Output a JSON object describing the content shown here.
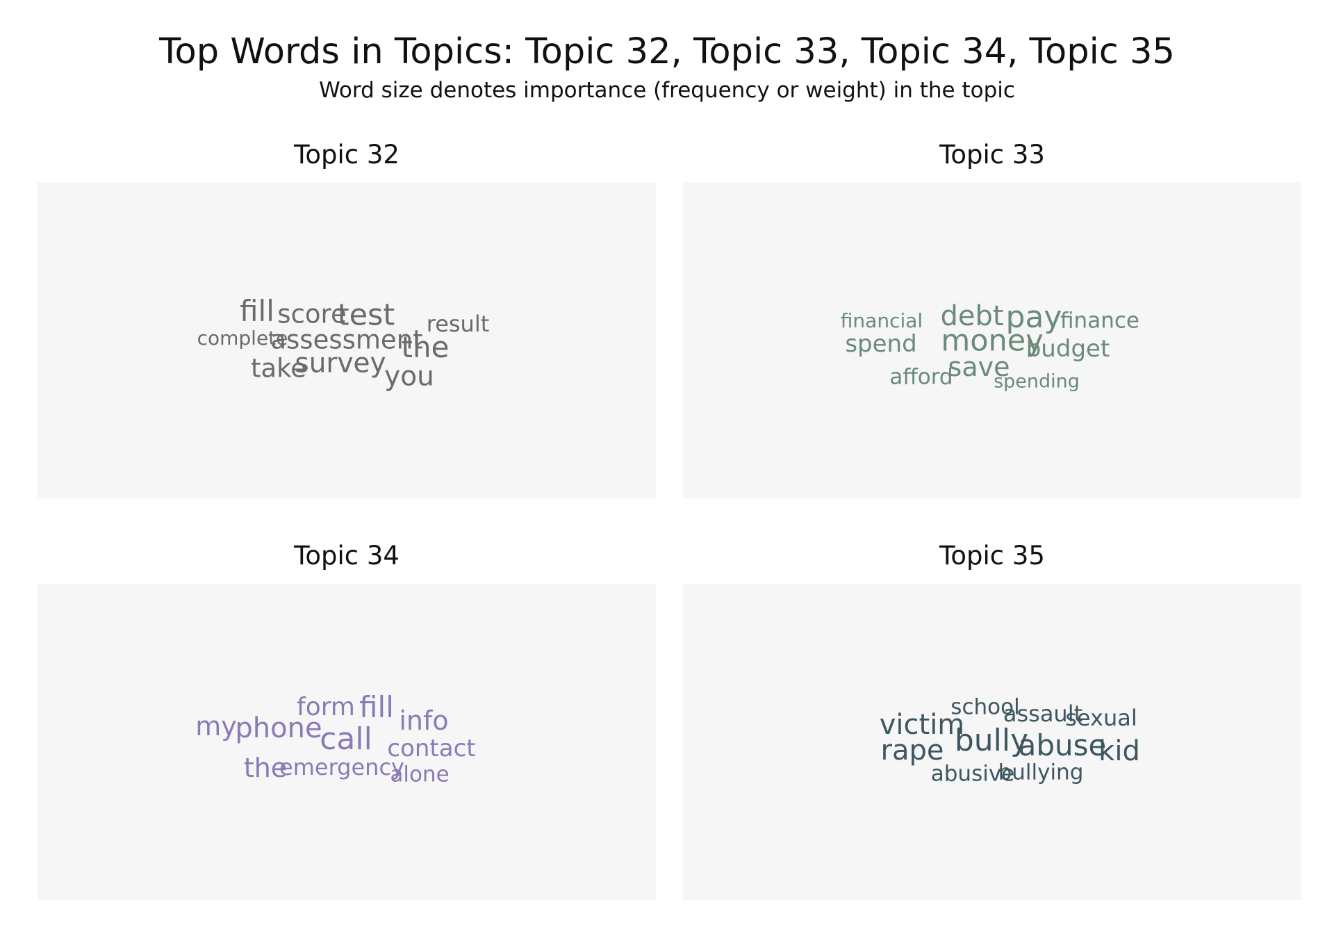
{
  "title": "Top Words in Topics: Topic 32, Topic 33, Topic 34, Topic 35",
  "subtitle": "Word size denotes importance (frequency or weight) in the topic",
  "chart_data": [
    {
      "type": "wordcloud",
      "title": "Topic 32",
      "color": "#6b6b6b",
      "words": [
        {
          "text": "fill",
          "weight": 0.9
        },
        {
          "text": "score",
          "weight": 0.7
        },
        {
          "text": "test",
          "weight": 0.95
        },
        {
          "text": "result",
          "weight": 0.5
        },
        {
          "text": "complete",
          "weight": 0.35
        },
        {
          "text": "assessment",
          "weight": 0.7
        },
        {
          "text": "the",
          "weight": 0.9
        },
        {
          "text": "take",
          "weight": 0.7
        },
        {
          "text": "survey",
          "weight": 0.8
        },
        {
          "text": "you",
          "weight": 0.8
        }
      ]
    },
    {
      "type": "wordcloud",
      "title": "Topic 33",
      "color": "#6a8a7a",
      "words": [
        {
          "text": "financial",
          "weight": 0.35
        },
        {
          "text": "debt",
          "weight": 0.85
        },
        {
          "text": "pay",
          "weight": 1.0
        },
        {
          "text": "finance",
          "weight": 0.45
        },
        {
          "text": "spend",
          "weight": 0.6
        },
        {
          "text": "money",
          "weight": 0.95
        },
        {
          "text": "budget",
          "weight": 0.6
        },
        {
          "text": "afford",
          "weight": 0.45
        },
        {
          "text": "save",
          "weight": 0.75
        },
        {
          "text": "spending",
          "weight": 0.3
        }
      ]
    },
    {
      "type": "wordcloud",
      "title": "Topic 34",
      "color": "#8a7ab5",
      "words": [
        {
          "text": "my",
          "weight": 0.75
        },
        {
          "text": "phone",
          "weight": 0.85
        },
        {
          "text": "form",
          "weight": 0.65
        },
        {
          "text": "fill",
          "weight": 0.9
        },
        {
          "text": "call",
          "weight": 1.0
        },
        {
          "text": "info",
          "weight": 0.75
        },
        {
          "text": "contact",
          "weight": 0.6
        },
        {
          "text": "the",
          "weight": 0.75
        },
        {
          "text": "emergency",
          "weight": 0.5
        },
        {
          "text": "alone",
          "weight": 0.45
        }
      ]
    },
    {
      "type": "wordcloud",
      "title": "Topic 35",
      "color": "#3e5660",
      "words": [
        {
          "text": "victim",
          "weight": 0.85
        },
        {
          "text": "school",
          "weight": 0.45
        },
        {
          "text": "assault",
          "weight": 0.5
        },
        {
          "text": "sexual",
          "weight": 0.5
        },
        {
          "text": "rape",
          "weight": 0.85
        },
        {
          "text": "bully",
          "weight": 1.0
        },
        {
          "text": "abuse",
          "weight": 0.9
        },
        {
          "text": "kid",
          "weight": 0.85
        },
        {
          "text": "abusive",
          "weight": 0.45
        },
        {
          "text": "bullying",
          "weight": 0.45
        }
      ]
    }
  ]
}
